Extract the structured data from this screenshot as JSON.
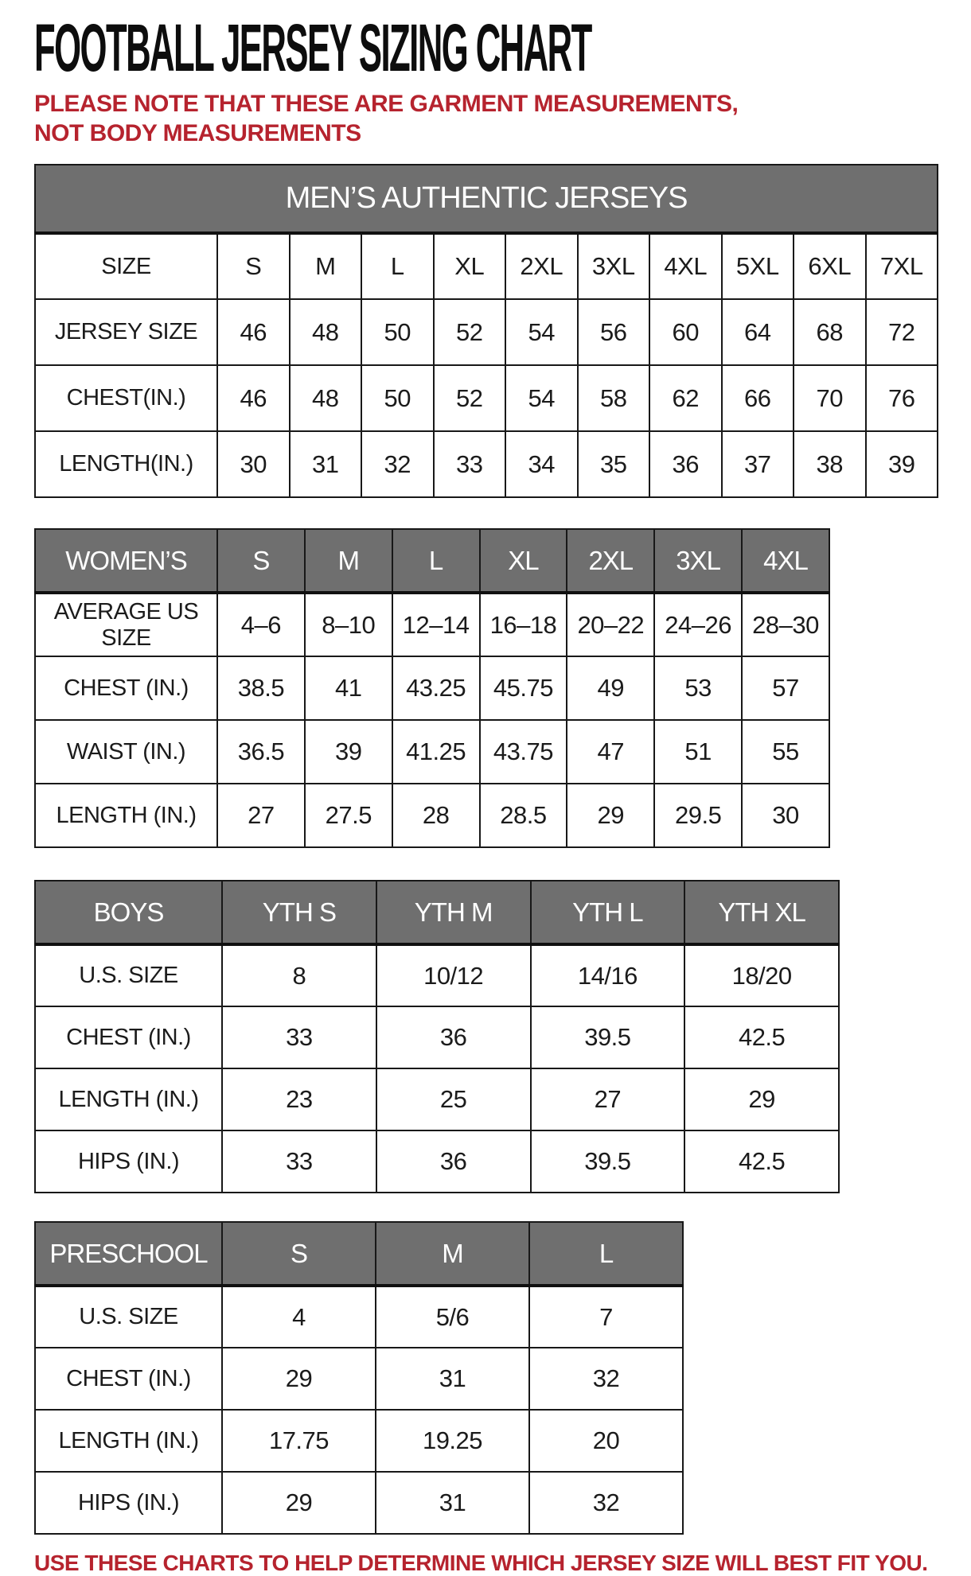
{
  "page": {
    "title": "FOOTBALL JERSEY SIZING CHART",
    "top_note": "PLEASE NOTE THAT THESE ARE GARMENT MEASUREMENTS, NOT BODY MEASUREMENTS",
    "bottom_note": "USE THESE CHARTS TO HELP DETERMINE WHICH JERSEY SIZE WILL BEST FIT YOU."
  },
  "colors": {
    "header_gray": "#6f6f6f",
    "note_red": "#b6232e",
    "border": "#181818",
    "header_text": "#ffffff",
    "body_text": "#1b1b1b",
    "background": "#ffffff"
  },
  "tables": {
    "mens": {
      "banner": "MEN’S AUTHENTIC JERSEYS",
      "rows": [
        {
          "label": "SIZE",
          "cells": [
            "S",
            "M",
            "L",
            "XL",
            "2XL",
            "3XL",
            "4XL",
            "5XL",
            "6XL",
            "7XL"
          ]
        },
        {
          "label": "JERSEY SIZE",
          "cells": [
            "46",
            "48",
            "50",
            "52",
            "54",
            "56",
            "60",
            "64",
            "68",
            "72"
          ]
        },
        {
          "label": "CHEST(IN.)",
          "cells": [
            "46",
            "48",
            "50",
            "52",
            "54",
            "58",
            "62",
            "66",
            "70",
            "76"
          ]
        },
        {
          "label": "LENGTH(IN.)",
          "cells": [
            "30",
            "31",
            "32",
            "33",
            "34",
            "35",
            "36",
            "37",
            "38",
            "39"
          ]
        }
      ]
    },
    "womens": {
      "header_label": "WOMEN’S",
      "header_cells": [
        "S",
        "M",
        "L",
        "XL",
        "2XL",
        "3XL",
        "4XL"
      ],
      "rows": [
        {
          "label": "AVERAGE US SIZE",
          "cells": [
            "4–6",
            "8–10",
            "12–14",
            "16–18",
            "20–22",
            "24–26",
            "28–30"
          ]
        },
        {
          "label": "CHEST (IN.)",
          "cells": [
            "38.5",
            "41",
            "43.25",
            "45.75",
            "49",
            "53",
            "57"
          ]
        },
        {
          "label": "WAIST (IN.)",
          "cells": [
            "36.5",
            "39",
            "41.25",
            "43.75",
            "47",
            "51",
            "55"
          ]
        },
        {
          "label": "LENGTH (IN.)",
          "cells": [
            "27",
            "27.5",
            "28",
            "28.5",
            "29",
            "29.5",
            "30"
          ]
        }
      ]
    },
    "boys": {
      "header_label": "BOYS",
      "header_cells": [
        "YTH S",
        "YTH M",
        "YTH L",
        "YTH XL"
      ],
      "rows": [
        {
          "label": "U.S. SIZE",
          "cells": [
            "8",
            "10/12",
            "14/16",
            "18/20"
          ]
        },
        {
          "label": "CHEST (IN.)",
          "cells": [
            "33",
            "36",
            "39.5",
            "42.5"
          ]
        },
        {
          "label": "LENGTH (IN.)",
          "cells": [
            "23",
            "25",
            "27",
            "29"
          ]
        },
        {
          "label": "HIPS (IN.)",
          "cells": [
            "33",
            "36",
            "39.5",
            "42.5"
          ]
        }
      ]
    },
    "preschool": {
      "header_label": "PRESCHOOL",
      "header_cells": [
        "S",
        "M",
        "L"
      ],
      "rows": [
        {
          "label": "U.S. SIZE",
          "cells": [
            "4",
            "5/6",
            "7"
          ]
        },
        {
          "label": "CHEST (IN.)",
          "cells": [
            "29",
            "31",
            "32"
          ]
        },
        {
          "label": "LENGTH (IN.)",
          "cells": [
            "17.75",
            "19.25",
            "20"
          ]
        },
        {
          "label": "HIPS (IN.)",
          "cells": [
            "29",
            "31",
            "32"
          ]
        }
      ]
    }
  }
}
